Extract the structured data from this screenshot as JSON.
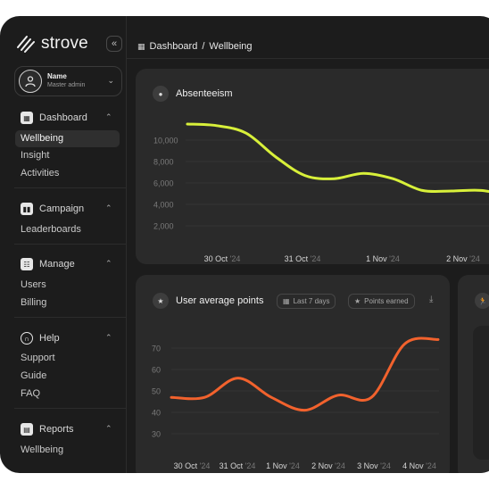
{
  "brand": {
    "name": "strove"
  },
  "profile": {
    "name": "Name",
    "role": "Master admin"
  },
  "sidebar": {
    "sections": [
      {
        "label": "Dashboard",
        "items": [
          "Wellbeing",
          "Insight",
          "Activities"
        ]
      },
      {
        "label": "Campaign",
        "items": [
          "Leaderboards"
        ]
      },
      {
        "label": "Manage",
        "items": [
          "Users",
          "Billing"
        ]
      },
      {
        "label": "Help",
        "items": [
          "Support",
          "Guide",
          "FAQ"
        ]
      },
      {
        "label": "Reports",
        "items": [
          "Wellbeing"
        ]
      }
    ],
    "active_item": "Wellbeing"
  },
  "breadcrumb": {
    "first": "Dashboard",
    "separator": "/",
    "second": "Wellbeing"
  },
  "absenteeism": {
    "title": "Absenteeism",
    "chart_data": {
      "type": "line",
      "y_ticks": [
        "10,000",
        "8,000",
        "6,000",
        "4,000",
        "2,000"
      ],
      "x_ticks": [
        {
          "day": "30 Oct",
          "year": "'24"
        },
        {
          "day": "31 Oct",
          "year": "'24"
        },
        {
          "day": "1 Nov",
          "year": "'24"
        },
        {
          "day": "2 Nov",
          "year": "'24"
        }
      ],
      "ylim": [
        0,
        11000
      ],
      "color": "#d8f03a",
      "series": [
        {
          "values": [
            10500,
            10350,
            9650,
            7450,
            5700,
            5400,
            5900,
            5400,
            4300,
            4250,
            4300,
            3800
          ]
        }
      ]
    }
  },
  "points": {
    "title": "User average points",
    "filter_range": "Last 7 days",
    "filter_metric": "Points earned",
    "chart_data": {
      "type": "line",
      "y_ticks": [
        "70",
        "60",
        "50",
        "40",
        "30"
      ],
      "x_ticks": [
        {
          "day": "30 Oct",
          "year": "'24"
        },
        {
          "day": "31 Oct",
          "year": "'24"
        },
        {
          "day": "1 Nov",
          "year": "'24"
        },
        {
          "day": "2 Nov",
          "year": "'24"
        },
        {
          "day": "3 Nov",
          "year": "'24"
        },
        {
          "day": "4 Nov",
          "year": "'24"
        }
      ],
      "ylim": [
        25,
        75
      ],
      "color": "#f2622d",
      "series": [
        {
          "values": [
            42,
            42,
            51,
            42,
            36,
            43,
            42,
            67,
            69
          ]
        }
      ]
    }
  },
  "colors": {
    "background": "#1c1c1c",
    "card": "#2a2a2a",
    "accent_line": "#d8f03a",
    "accent_orange": "#f2622d"
  }
}
